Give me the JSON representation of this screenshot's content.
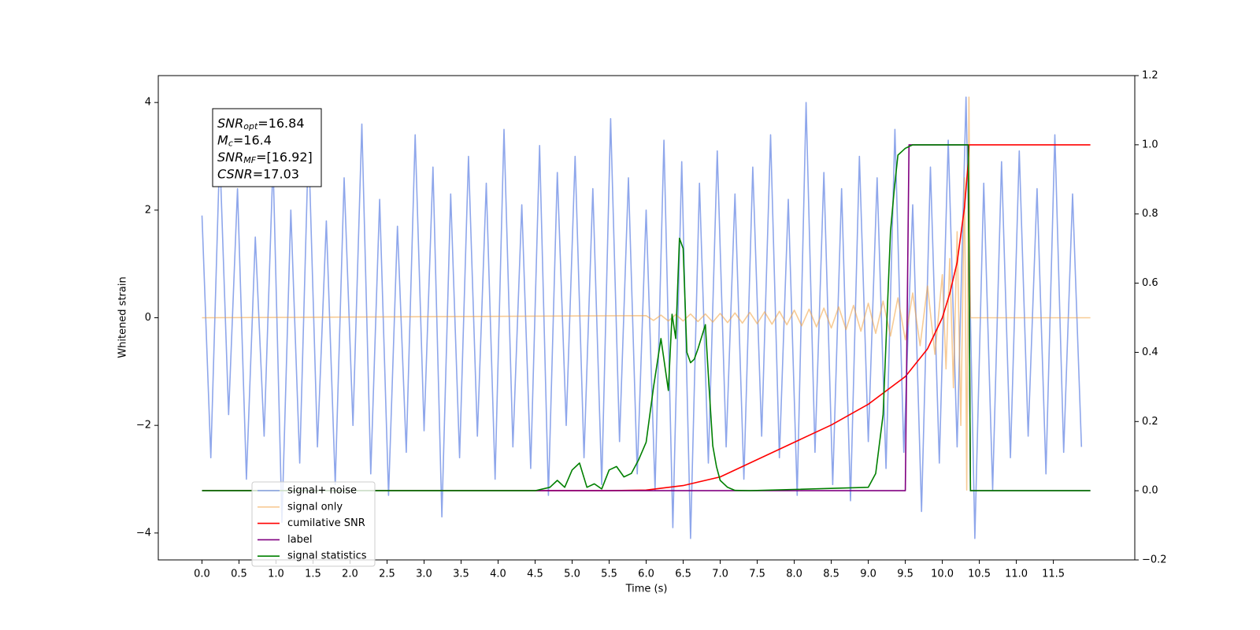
{
  "chart_data": {
    "type": "line",
    "xlabel": "Time (s)",
    "ylabel": "Whitened strain",
    "xlim": [
      -0.59,
      12.6
    ],
    "xticks": [
      {
        "value": 0,
        "label": "0.0"
      },
      0.5,
      {
        "value": 1,
        "label": "1.0"
      },
      1.5,
      {
        "value": 2,
        "label": "2.0"
      },
      2.5,
      {
        "value": 3,
        "label": "3.0"
      },
      3.5,
      {
        "value": 4,
        "label": "4.0"
      },
      4.5,
      {
        "value": 5,
        "label": "5.0"
      },
      5.5,
      {
        "value": 6,
        "label": "6.0"
      },
      6.5,
      {
        "value": 7,
        "label": "7.0"
      },
      7.5,
      {
        "value": 8,
        "label": "8.0"
      },
      8.5,
      {
        "value": 9,
        "label": "9.0"
      },
      9.5,
      {
        "value": 10,
        "label": "10.0"
      },
      10.5,
      {
        "value": 11,
        "label": "11.0"
      },
      11.5
    ],
    "ylim": [
      -4.5,
      4.5
    ],
    "yticks": [
      {
        "value": -4,
        "label": "−4"
      },
      {
        "value": -2,
        "label": "−2"
      },
      0,
      2,
      4
    ],
    "y2lim": [
      -0.2,
      1.2
    ],
    "y2ticks": [
      {
        "value": -0.2,
        "label": "−0.2"
      },
      {
        "value": 0,
        "label": "0.0"
      },
      0.2,
      0.4,
      0.6,
      0.8,
      {
        "value": 1,
        "label": "1.0"
      },
      1.2
    ],
    "annotations": [
      {
        "base": "SNR",
        "sub": "opt",
        "text": "=16.84"
      },
      {
        "base": "M",
        "sub": "c",
        "text": "=16.4"
      },
      {
        "base": "SNR",
        "sub": "MF",
        "text": "=[16.92]"
      },
      {
        "base": "CSNR",
        "sub": null,
        "text": "=17.03"
      }
    ],
    "series": [
      {
        "name": "signal+ noise",
        "color": "#7a96e8",
        "x": [
          0,
          0.12,
          0.24,
          0.36,
          0.48,
          0.6,
          0.72,
          0.84,
          0.96,
          1.08,
          1.2,
          1.32,
          1.44,
          1.56,
          1.68,
          1.8,
          1.92,
          2.04,
          2.16,
          2.28,
          2.4,
          2.52,
          2.64,
          2.76,
          2.88,
          3.0,
          3.12,
          3.24,
          3.36,
          3.48,
          3.6,
          3.72,
          3.84,
          3.96,
          4.08,
          4.2,
          4.32,
          4.44,
          4.56,
          4.68,
          4.8,
          4.92,
          5.04,
          5.16,
          5.28,
          5.4,
          5.52,
          5.64,
          5.76,
          5.88,
          6.0,
          6.12,
          6.24,
          6.36,
          6.48,
          6.6,
          6.72,
          6.84,
          6.96,
          7.08,
          7.2,
          7.32,
          7.44,
          7.56,
          7.68,
          7.8,
          7.92,
          8.04,
          8.16,
          8.28,
          8.4,
          8.52,
          8.64,
          8.76,
          8.88,
          9.0,
          9.12,
          9.24,
          9.36,
          9.48,
          9.6,
          9.72,
          9.84,
          9.96,
          10.08,
          10.2,
          10.32,
          10.44,
          10.56,
          10.68,
          10.8,
          10.92,
          11.04,
          11.16,
          11.28,
          11.4,
          11.52,
          11.64,
          11.76,
          11.88
        ],
        "values": [
          1.9,
          -2.6,
          3.1,
          -1.8,
          2.4,
          -3.0,
          1.5,
          -2.2,
          2.9,
          -3.8,
          2.0,
          -2.7,
          3.3,
          -2.4,
          1.8,
          -3.1,
          2.6,
          -2.0,
          3.6,
          -2.9,
          2.2,
          -3.3,
          1.7,
          -2.5,
          3.4,
          -2.1,
          2.8,
          -3.7,
          2.3,
          -2.6,
          3.0,
          -2.2,
          2.5,
          -3.0,
          3.5,
          -2.4,
          2.1,
          -2.8,
          3.2,
          -3.3,
          2.7,
          -2.0,
          3.0,
          -2.6,
          2.4,
          -3.1,
          3.7,
          -2.3,
          2.6,
          -2.9,
          2.0,
          -3.2,
          3.3,
          -3.9,
          2.9,
          -4.1,
          2.5,
          -2.7,
          3.1,
          -2.4,
          2.3,
          -3.0,
          2.8,
          -2.2,
          3.4,
          -2.6,
          2.2,
          -3.3,
          4.0,
          -2.5,
          2.7,
          -3.1,
          2.4,
          -3.4,
          3.0,
          -2.3,
          2.6,
          -2.8,
          3.5,
          -2.5,
          2.1,
          -3.6,
          2.8,
          -2.7,
          3.3,
          -2.4,
          4.1,
          -4.1,
          2.5,
          -3.2,
          2.9,
          -2.6,
          3.1,
          -2.2,
          2.4,
          -2.9,
          3.4,
          -2.5,
          2.3,
          -2.4
        ]
      },
      {
        "name": "signal only",
        "color": "#f0a040",
        "x": [
          0,
          6.0,
          6.1,
          6.2,
          6.3,
          6.4,
          6.5,
          6.6,
          6.7,
          6.8,
          6.9,
          7.0,
          7.1,
          7.2,
          7.3,
          7.4,
          7.5,
          7.6,
          7.7,
          7.8,
          7.9,
          8.0,
          8.1,
          8.2,
          8.3,
          8.4,
          8.5,
          8.6,
          8.7,
          8.8,
          8.9,
          9.0,
          9.1,
          9.2,
          9.3,
          9.4,
          9.5,
          9.6,
          9.7,
          9.8,
          9.9,
          10.0,
          10.05,
          10.1,
          10.15,
          10.2,
          10.25,
          10.3,
          10.33,
          10.36,
          10.38,
          12
        ],
        "values": [
          0,
          0.04,
          -0.05,
          0.05,
          -0.06,
          0.06,
          -0.06,
          0.07,
          -0.07,
          0.07,
          -0.08,
          0.08,
          -0.09,
          0.09,
          -0.1,
          0.1,
          -0.11,
          0.11,
          -0.12,
          0.12,
          -0.13,
          0.14,
          -0.15,
          0.16,
          -0.17,
          0.18,
          -0.19,
          0.2,
          -0.22,
          0.23,
          -0.25,
          0.27,
          -0.29,
          0.31,
          -0.34,
          0.37,
          -0.41,
          0.46,
          -0.52,
          0.59,
          -0.68,
          0.8,
          -0.95,
          1.1,
          -1.3,
          1.6,
          -2.0,
          2.6,
          -3.2,
          4.1,
          0,
          0
        ]
      },
      {
        "name": "cumilative SNR",
        "color": "#ff0000",
        "axis": "y2",
        "x": [
          0,
          5.5,
          6.0,
          6.5,
          7.0,
          7.5,
          8.0,
          8.5,
          9.0,
          9.5,
          9.8,
          10.0,
          10.1,
          10.2,
          10.3,
          10.35,
          10.36,
          12
        ],
        "values": [
          0,
          0,
          0.002,
          0.015,
          0.04,
          0.09,
          0.14,
          0.19,
          0.25,
          0.33,
          0.41,
          0.5,
          0.57,
          0.66,
          0.82,
          0.95,
          1.0,
          1.0
        ]
      },
      {
        "name": "label",
        "color": "#800080",
        "axis": "y2",
        "x": [
          0,
          9.5,
          9.55,
          10.35,
          10.38,
          12
        ],
        "values": [
          0,
          0,
          1,
          1,
          0,
          0
        ]
      },
      {
        "name": "signal statistics",
        "color": "#008000",
        "axis": "y2",
        "x": [
          0,
          4.5,
          4.7,
          4.8,
          4.9,
          5.0,
          5.1,
          5.2,
          5.3,
          5.4,
          5.5,
          5.6,
          5.7,
          5.8,
          5.9,
          6.0,
          6.1,
          6.2,
          6.3,
          6.35,
          6.4,
          6.45,
          6.5,
          6.55,
          6.6,
          6.65,
          6.7,
          6.8,
          6.85,
          6.9,
          6.95,
          7.0,
          7.1,
          7.2,
          7.4,
          9.0,
          9.1,
          9.2,
          9.3,
          9.35,
          9.4,
          9.5,
          9.6,
          9.8,
          10.35,
          10.38,
          12
        ],
        "values": [
          0,
          0,
          0.01,
          0.03,
          0.01,
          0.06,
          0.08,
          0.01,
          0.02,
          0.005,
          0.06,
          0.07,
          0.04,
          0.05,
          0.09,
          0.14,
          0.3,
          0.44,
          0.29,
          0.51,
          0.44,
          0.73,
          0.7,
          0.4,
          0.37,
          0.38,
          0.41,
          0.48,
          0.3,
          0.13,
          0.07,
          0.03,
          0.01,
          0.001,
          0,
          0.01,
          0.05,
          0.22,
          0.75,
          0.87,
          0.97,
          0.99,
          1.0,
          1.0,
          1.0,
          0,
          0
        ]
      }
    ]
  }
}
